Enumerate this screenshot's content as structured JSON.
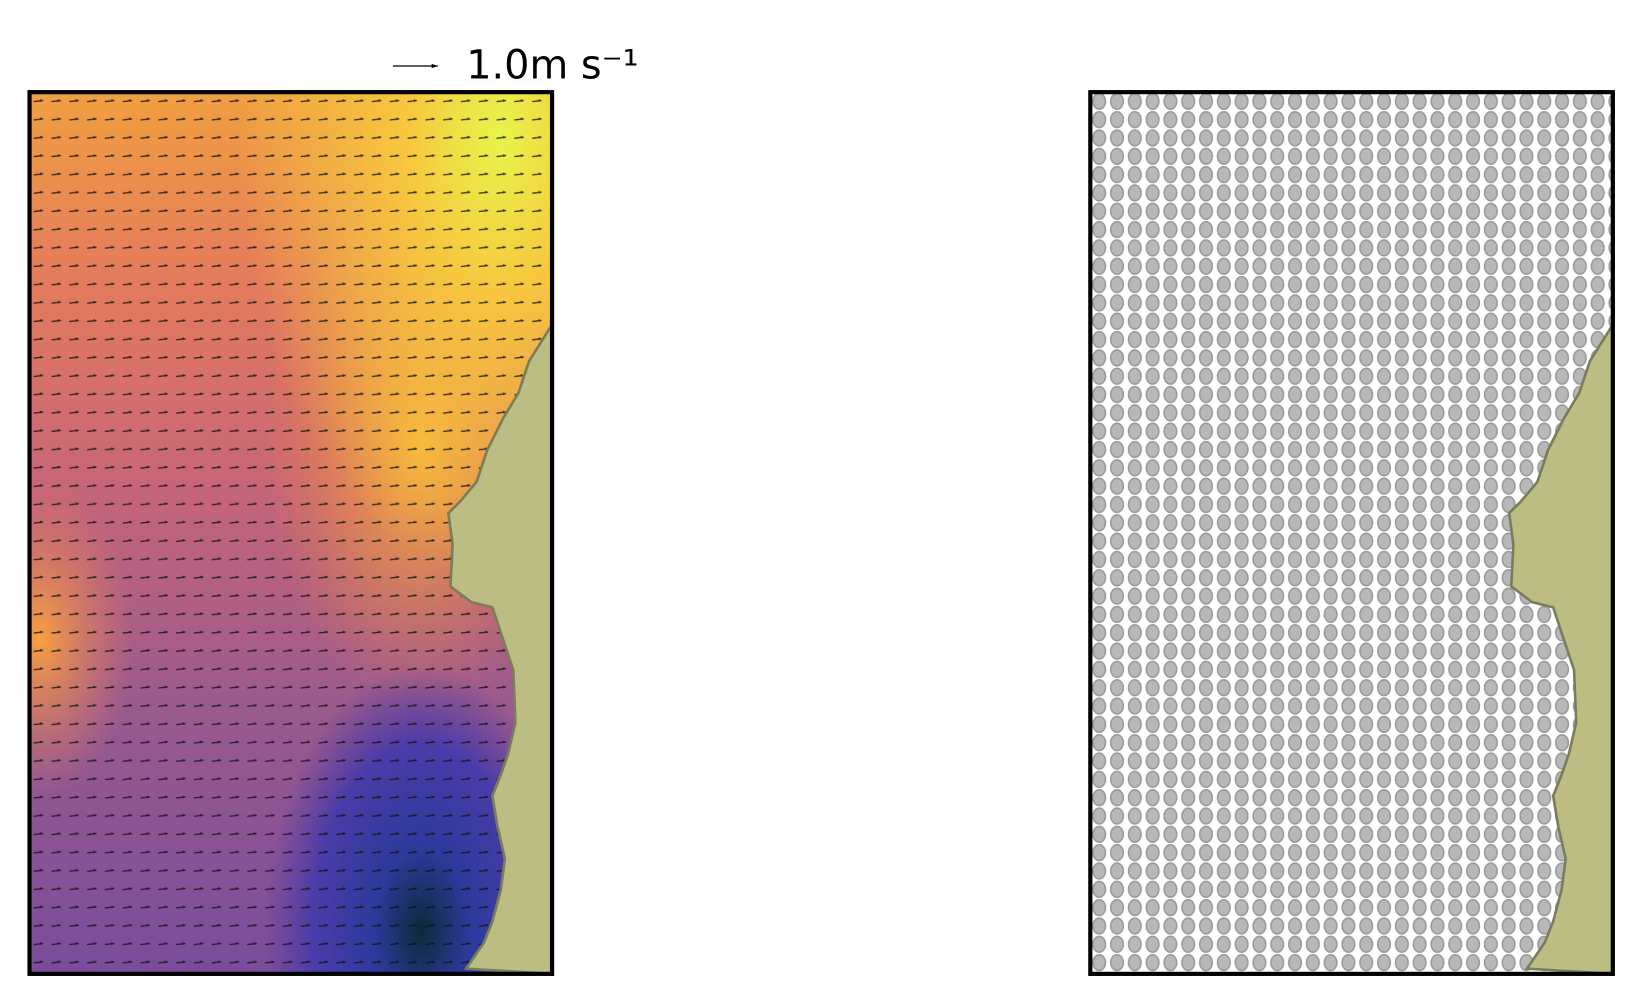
{
  "quiver_key": {
    "label": "1.0m s⁻¹"
  }
}
